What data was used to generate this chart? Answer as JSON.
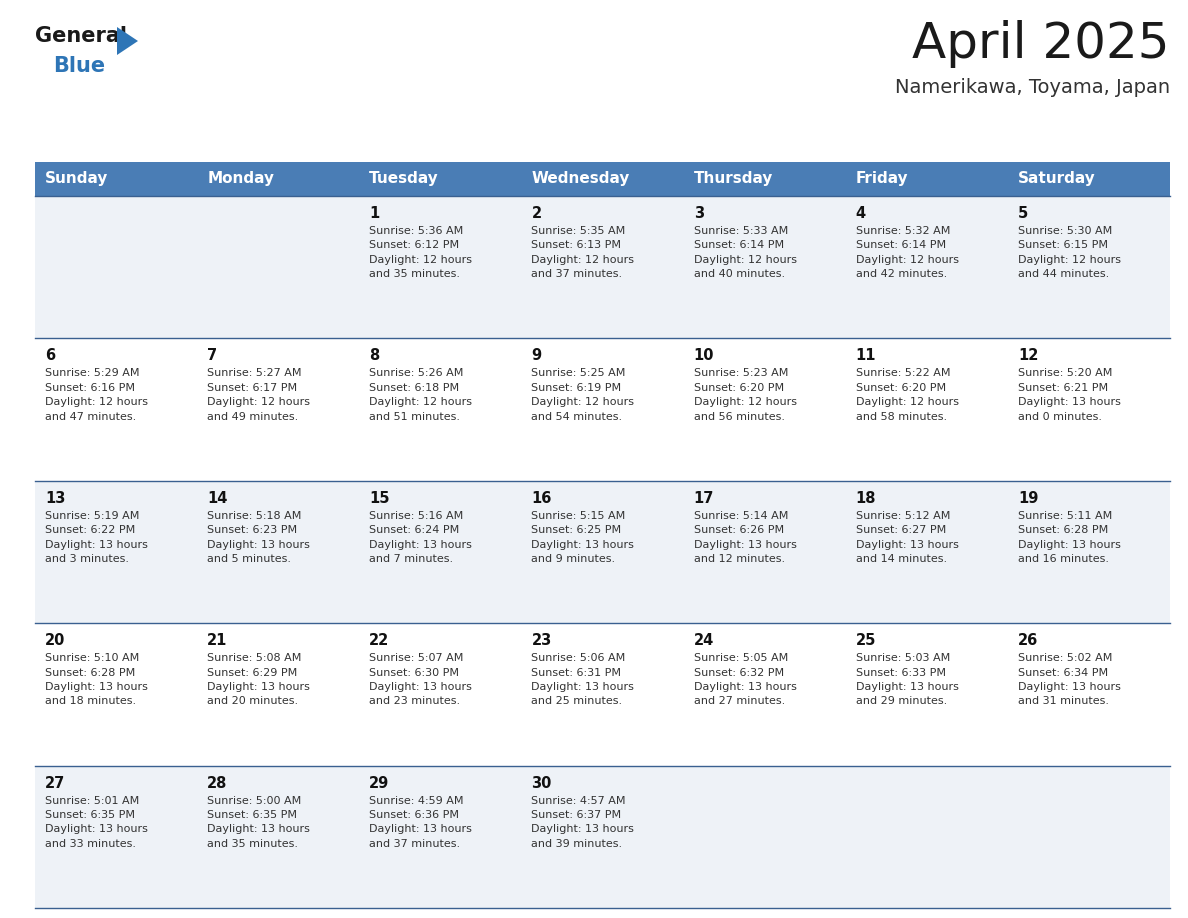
{
  "title": "April 2025",
  "subtitle": "Namerikawa, Toyama, Japan",
  "header_bg": "#4a7db5",
  "header_text": "#ffffff",
  "days_of_week": [
    "Sunday",
    "Monday",
    "Tuesday",
    "Wednesday",
    "Thursday",
    "Friday",
    "Saturday"
  ],
  "row_bg_light": "#eef2f7",
  "row_bg_white": "#ffffff",
  "cell_border_color": "#3a6090",
  "title_color": "#1a1a1a",
  "subtitle_color": "#333333",
  "day_number_color": "#111111",
  "cell_text_color": "#333333",
  "logo_general_color": "#1a1a1a",
  "logo_blue_color": "#2e75b6",
  "logo_triangle_color": "#2e75b6",
  "calendar": [
    [
      {
        "day": null,
        "info": null
      },
      {
        "day": null,
        "info": null
      },
      {
        "day": 1,
        "info": "Sunrise: 5:36 AM\nSunset: 6:12 PM\nDaylight: 12 hours\nand 35 minutes."
      },
      {
        "day": 2,
        "info": "Sunrise: 5:35 AM\nSunset: 6:13 PM\nDaylight: 12 hours\nand 37 minutes."
      },
      {
        "day": 3,
        "info": "Sunrise: 5:33 AM\nSunset: 6:14 PM\nDaylight: 12 hours\nand 40 minutes."
      },
      {
        "day": 4,
        "info": "Sunrise: 5:32 AM\nSunset: 6:14 PM\nDaylight: 12 hours\nand 42 minutes."
      },
      {
        "day": 5,
        "info": "Sunrise: 5:30 AM\nSunset: 6:15 PM\nDaylight: 12 hours\nand 44 minutes."
      }
    ],
    [
      {
        "day": 6,
        "info": "Sunrise: 5:29 AM\nSunset: 6:16 PM\nDaylight: 12 hours\nand 47 minutes."
      },
      {
        "day": 7,
        "info": "Sunrise: 5:27 AM\nSunset: 6:17 PM\nDaylight: 12 hours\nand 49 minutes."
      },
      {
        "day": 8,
        "info": "Sunrise: 5:26 AM\nSunset: 6:18 PM\nDaylight: 12 hours\nand 51 minutes."
      },
      {
        "day": 9,
        "info": "Sunrise: 5:25 AM\nSunset: 6:19 PM\nDaylight: 12 hours\nand 54 minutes."
      },
      {
        "day": 10,
        "info": "Sunrise: 5:23 AM\nSunset: 6:20 PM\nDaylight: 12 hours\nand 56 minutes."
      },
      {
        "day": 11,
        "info": "Sunrise: 5:22 AM\nSunset: 6:20 PM\nDaylight: 12 hours\nand 58 minutes."
      },
      {
        "day": 12,
        "info": "Sunrise: 5:20 AM\nSunset: 6:21 PM\nDaylight: 13 hours\nand 0 minutes."
      }
    ],
    [
      {
        "day": 13,
        "info": "Sunrise: 5:19 AM\nSunset: 6:22 PM\nDaylight: 13 hours\nand 3 minutes."
      },
      {
        "day": 14,
        "info": "Sunrise: 5:18 AM\nSunset: 6:23 PM\nDaylight: 13 hours\nand 5 minutes."
      },
      {
        "day": 15,
        "info": "Sunrise: 5:16 AM\nSunset: 6:24 PM\nDaylight: 13 hours\nand 7 minutes."
      },
      {
        "day": 16,
        "info": "Sunrise: 5:15 AM\nSunset: 6:25 PM\nDaylight: 13 hours\nand 9 minutes."
      },
      {
        "day": 17,
        "info": "Sunrise: 5:14 AM\nSunset: 6:26 PM\nDaylight: 13 hours\nand 12 minutes."
      },
      {
        "day": 18,
        "info": "Sunrise: 5:12 AM\nSunset: 6:27 PM\nDaylight: 13 hours\nand 14 minutes."
      },
      {
        "day": 19,
        "info": "Sunrise: 5:11 AM\nSunset: 6:28 PM\nDaylight: 13 hours\nand 16 minutes."
      }
    ],
    [
      {
        "day": 20,
        "info": "Sunrise: 5:10 AM\nSunset: 6:28 PM\nDaylight: 13 hours\nand 18 minutes."
      },
      {
        "day": 21,
        "info": "Sunrise: 5:08 AM\nSunset: 6:29 PM\nDaylight: 13 hours\nand 20 minutes."
      },
      {
        "day": 22,
        "info": "Sunrise: 5:07 AM\nSunset: 6:30 PM\nDaylight: 13 hours\nand 23 minutes."
      },
      {
        "day": 23,
        "info": "Sunrise: 5:06 AM\nSunset: 6:31 PM\nDaylight: 13 hours\nand 25 minutes."
      },
      {
        "day": 24,
        "info": "Sunrise: 5:05 AM\nSunset: 6:32 PM\nDaylight: 13 hours\nand 27 minutes."
      },
      {
        "day": 25,
        "info": "Sunrise: 5:03 AM\nSunset: 6:33 PM\nDaylight: 13 hours\nand 29 minutes."
      },
      {
        "day": 26,
        "info": "Sunrise: 5:02 AM\nSunset: 6:34 PM\nDaylight: 13 hours\nand 31 minutes."
      }
    ],
    [
      {
        "day": 27,
        "info": "Sunrise: 5:01 AM\nSunset: 6:35 PM\nDaylight: 13 hours\nand 33 minutes."
      },
      {
        "day": 28,
        "info": "Sunrise: 5:00 AM\nSunset: 6:35 PM\nDaylight: 13 hours\nand 35 minutes."
      },
      {
        "day": 29,
        "info": "Sunrise: 4:59 AM\nSunset: 6:36 PM\nDaylight: 13 hours\nand 37 minutes."
      },
      {
        "day": 30,
        "info": "Sunrise: 4:57 AM\nSunset: 6:37 PM\nDaylight: 13 hours\nand 39 minutes."
      },
      {
        "day": null,
        "info": null
      },
      {
        "day": null,
        "info": null
      },
      {
        "day": null,
        "info": null
      }
    ]
  ],
  "figsize": [
    11.88,
    9.18
  ],
  "dpi": 100
}
